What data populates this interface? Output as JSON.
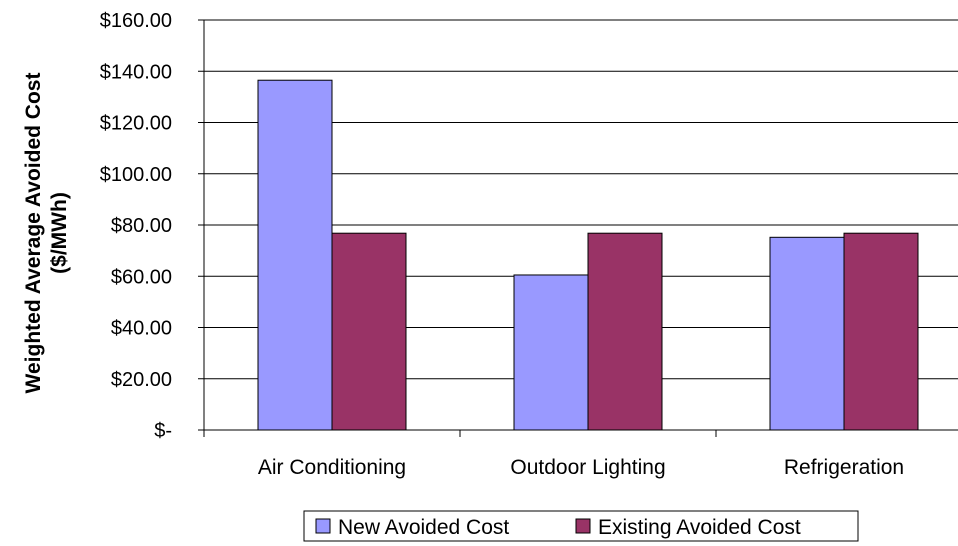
{
  "chart_data": {
    "type": "bar",
    "title": "",
    "ylabel": "Weighted Average Avoided Cost",
    "ylabel_units": "($/MWh)",
    "xlabel": "",
    "categories": [
      "Air Conditioning",
      "Outdoor Lighting",
      "Refrigeration"
    ],
    "series": [
      {
        "name": "New Avoided Cost",
        "color": "#9999ff",
        "values": [
          136.5,
          60.5,
          75.2
        ]
      },
      {
        "name": "Existing Avoided Cost",
        "color": "#993366",
        "values": [
          76.8,
          76.8,
          76.8
        ]
      }
    ],
    "ylim": [
      0,
      160
    ],
    "yticks": [
      0,
      20,
      40,
      60,
      80,
      100,
      120,
      140,
      160
    ],
    "ytick_labels": [
      "$-",
      "$20.00",
      "$40.00",
      "$60.00",
      "$80.00",
      "$100.00",
      "$120.00",
      "$140.00",
      "$160.00"
    ],
    "grid": true,
    "legend_position": "bottom"
  }
}
